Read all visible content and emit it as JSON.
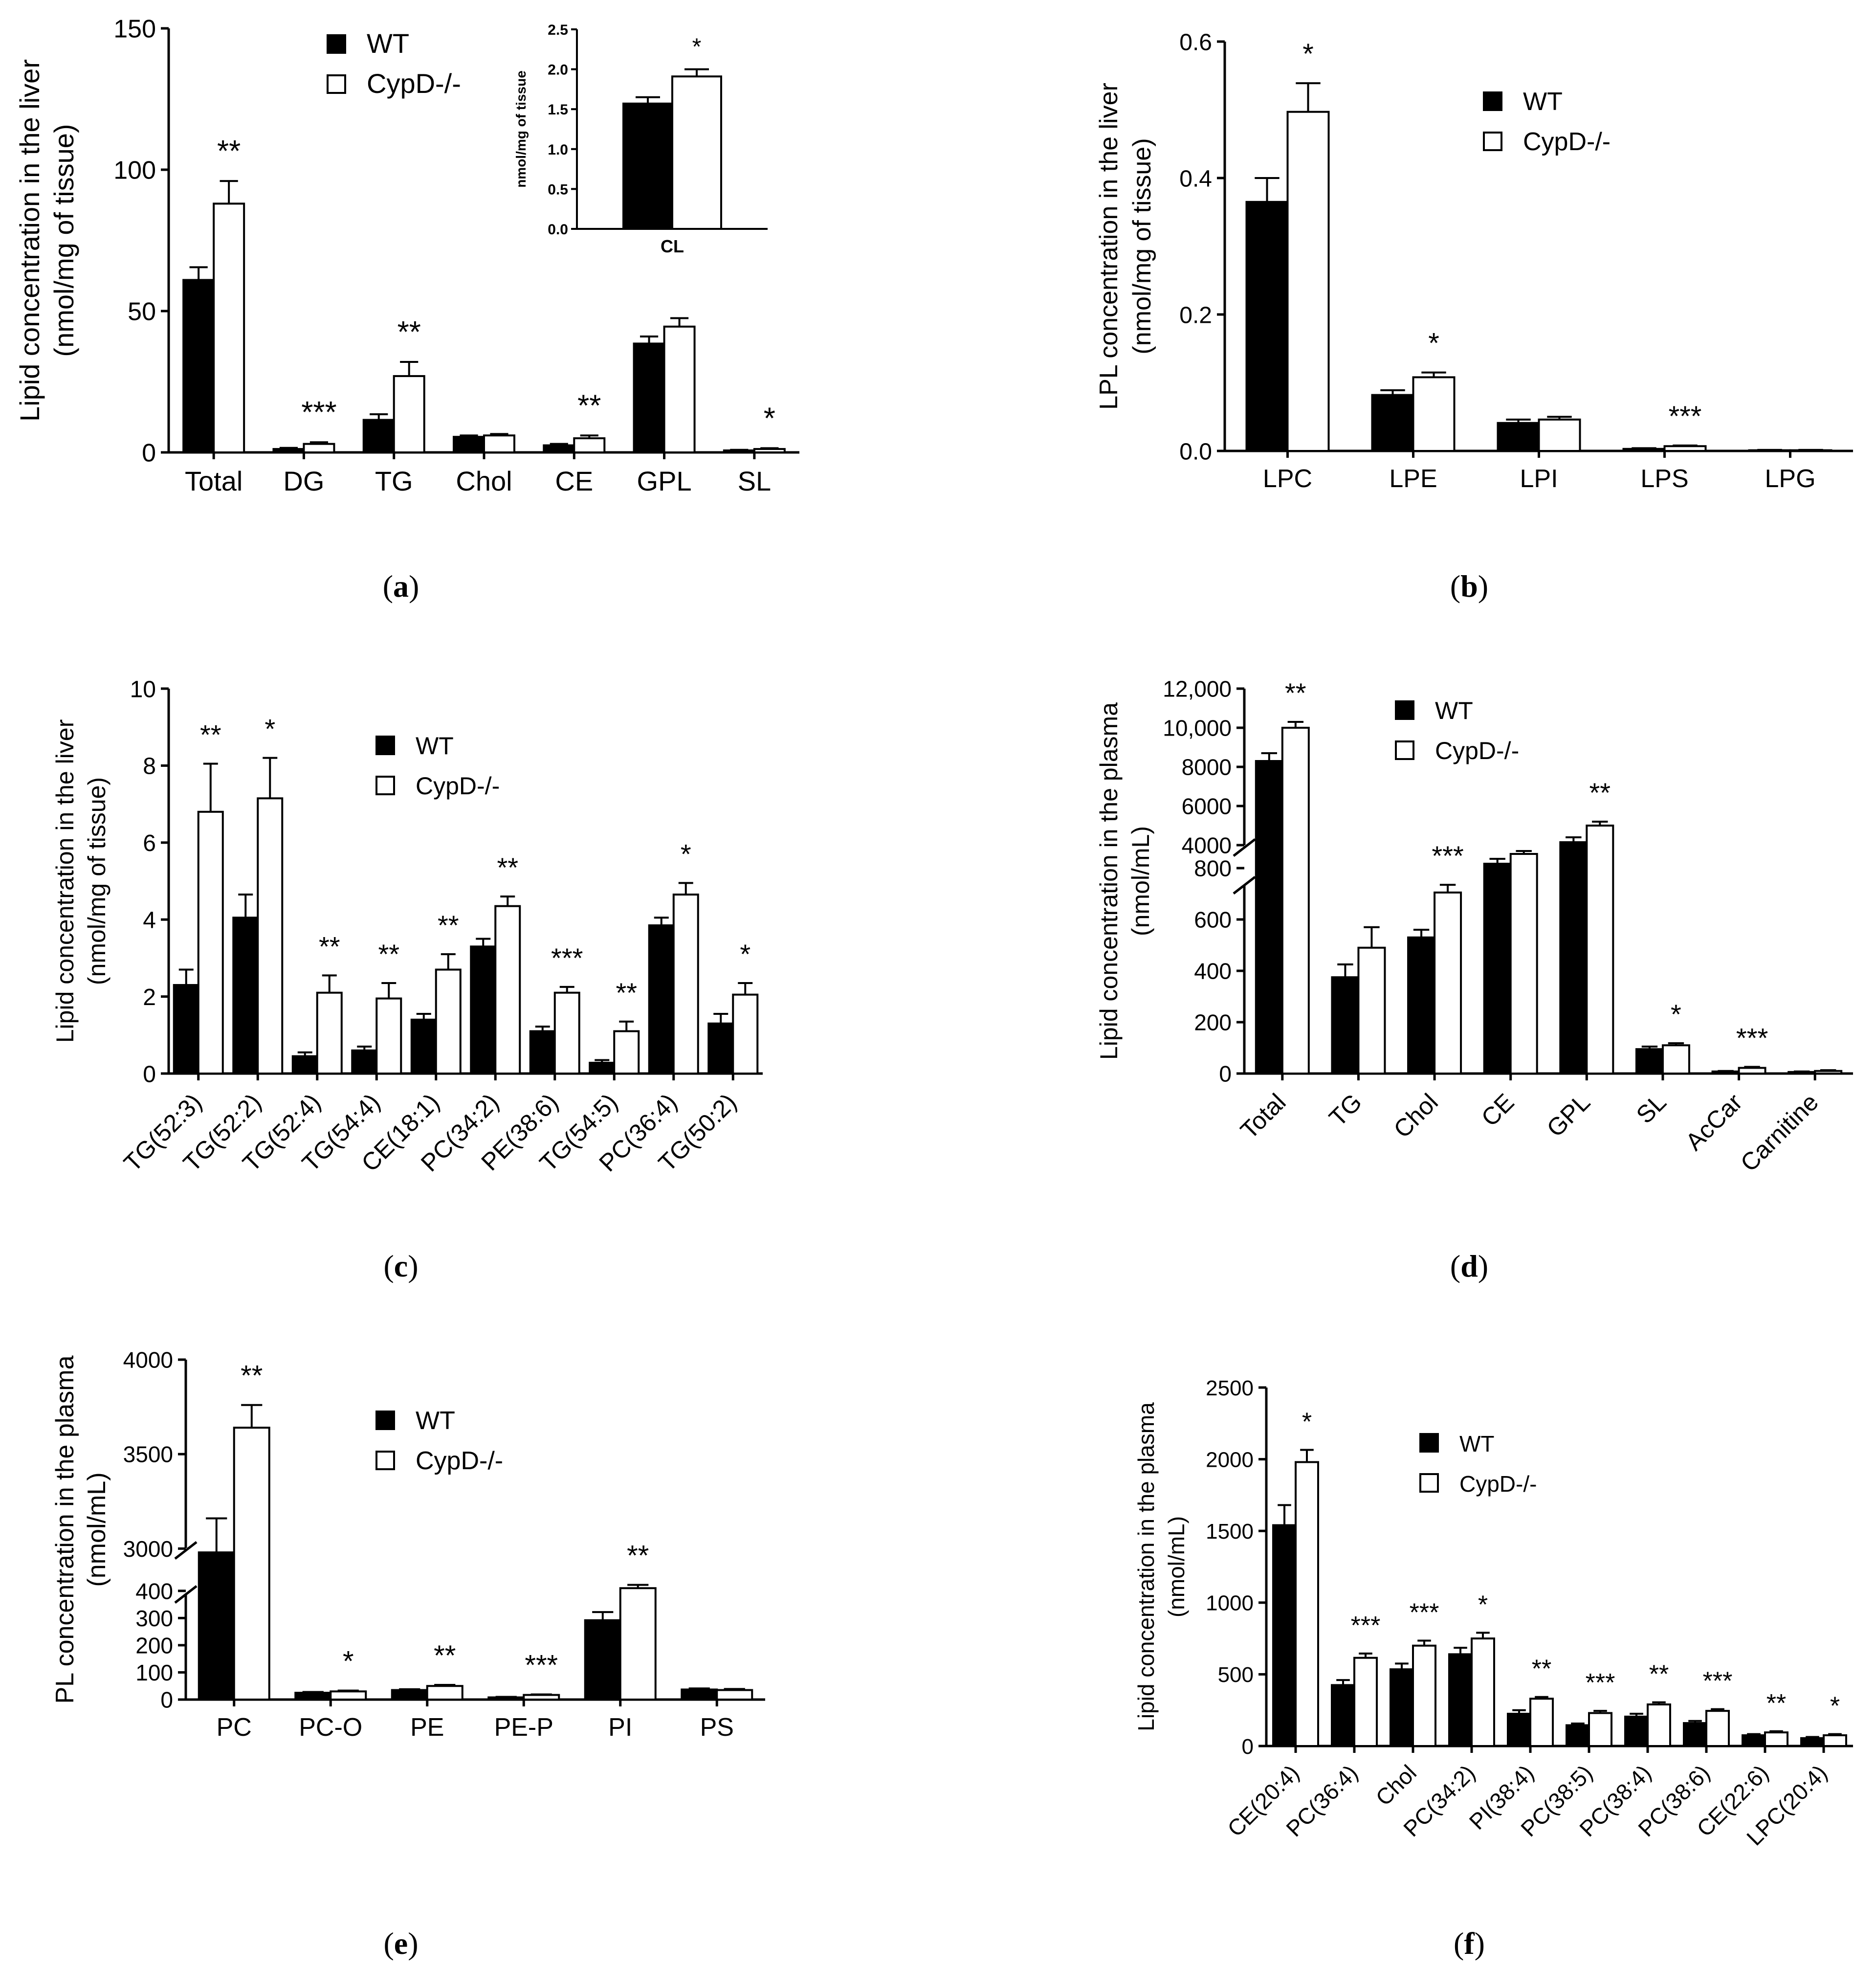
{
  "chart_data": [
    {
      "id": "a",
      "type": "bar",
      "caption": "a",
      "ylabel": [
        "Lipid concentration in the liver",
        "(nmol/mg of tissue)"
      ],
      "ylim": [
        0,
        150
      ],
      "yticks": [
        "0",
        "50",
        "100",
        "150"
      ],
      "categories": [
        "Total",
        "DG",
        "TG",
        "Chol",
        "CE",
        "GPL",
        "SL"
      ],
      "series": [
        {
          "name": "WT",
          "values": [
            61,
            1.2,
            11.5,
            5.5,
            2.5,
            38.5,
            0.7
          ],
          "errors": [
            4.5,
            0.4,
            2,
            0.5,
            0.5,
            2.5,
            0.2
          ]
        },
        {
          "name": "CypD-/-",
          "values": [
            88,
            3,
            27,
            6,
            5,
            44.5,
            1.2
          ],
          "errors": [
            8,
            0.6,
            5,
            0.5,
            1,
            3,
            0.3
          ]
        }
      ],
      "significance": [
        "**",
        "***",
        "**",
        "",
        "**",
        "",
        "*"
      ],
      "legend": "top-center",
      "inset": {
        "ylabel": "nmol/mg of tissue",
        "ylim": [
          0,
          2.5
        ],
        "yticks": [
          "0.0",
          "0.5",
          "1.0",
          "1.5",
          "2.0",
          "2.5"
        ],
        "category": "CL",
        "values": [
          1.57,
          1.91
        ],
        "errors": [
          0.08,
          0.09
        ],
        "significance": "*"
      }
    },
    {
      "id": "b",
      "type": "bar",
      "caption": "b",
      "ylabel": [
        "LPL concentration in the liver",
        "(nmol/mg of tissue)"
      ],
      "ylim": [
        0,
        0.6
      ],
      "yticks": [
        "0.0",
        "0.2",
        "0.4",
        "0.6"
      ],
      "categories": [
        "LPC",
        "LPE",
        "LPI",
        "LPS",
        "LPG"
      ],
      "series": [
        {
          "name": "WT",
          "values": [
            0.365,
            0.082,
            0.041,
            0.003,
            0.001
          ],
          "errors": [
            0.035,
            0.007,
            0.005,
            0.001,
            0.0005
          ]
        },
        {
          "name": "CypD-/-",
          "values": [
            0.497,
            0.108,
            0.046,
            0.007,
            0.001
          ],
          "errors": [
            0.042,
            0.007,
            0.004,
            0.001,
            0.0005
          ]
        }
      ],
      "significance": [
        "*",
        "*",
        "",
        "***",
        ""
      ],
      "legend": "top-right"
    },
    {
      "id": "c",
      "type": "bar",
      "caption": "c",
      "ylabel": [
        "Lipid concentration in the liver",
        "(nmol/mg of tissue)"
      ],
      "ylim": [
        0,
        10
      ],
      "yticks": [
        "0",
        "2",
        "4",
        "6",
        "8",
        "10"
      ],
      "categories": [
        "TG(52:3)",
        "TG(52:2)",
        "TG(52:4)",
        "TG(54:4)",
        "CE(18:1)",
        "PC(34:2)",
        "PE(38:6)",
        "TG(54:5)",
        "PC(36:4)",
        "TG(50:2)"
      ],
      "series": [
        {
          "name": "WT",
          "values": [
            2.3,
            4.05,
            0.45,
            0.6,
            1.4,
            3.3,
            1.1,
            0.28,
            3.85,
            1.3
          ],
          "errors": [
            0.4,
            0.6,
            0.1,
            0.1,
            0.15,
            0.2,
            0.12,
            0.07,
            0.2,
            0.25
          ]
        },
        {
          "name": "CypD-/-",
          "values": [
            6.8,
            7.15,
            2.1,
            1.95,
            2.7,
            4.35,
            2.1,
            1.1,
            4.65,
            2.05
          ],
          "errors": [
            1.25,
            1.05,
            0.45,
            0.4,
            0.4,
            0.25,
            0.15,
            0.25,
            0.3,
            0.3
          ]
        }
      ],
      "significance": [
        "**",
        "*",
        "**",
        "**",
        "**",
        "**",
        "***",
        "**",
        "*",
        "*"
      ],
      "legend": "top-center"
    },
    {
      "id": "d",
      "type": "bar",
      "caption": "d",
      "ylabel": [
        "Lipid concentration in the plasma",
        "(nmol/mL)"
      ],
      "yticks_upper": [
        "4000",
        "6000",
        "8000",
        "10,000",
        "12,000"
      ],
      "yticks_lower": [
        "0",
        "200",
        "400",
        "600",
        "800"
      ],
      "broken_axis": {
        "lower": [
          0,
          800
        ],
        "upper": [
          3000,
          12000
        ]
      },
      "categories": [
        "Total",
        "TG",
        "Chol",
        "CE",
        "GPL",
        "SL",
        "AcCar",
        "Carnitine"
      ],
      "series": [
        {
          "name": "WT",
          "values": [
            8300,
            375,
            530,
            3050,
            4150,
            95,
            8,
            6
          ],
          "errors": [
            400,
            50,
            30,
            250,
            250,
            10,
            2,
            2
          ]
        },
        {
          "name": "CypD-/-",
          "values": [
            10000,
            490,
            705,
            3550,
            5000,
            110,
            22,
            10
          ],
          "errors": [
            300,
            80,
            30,
            150,
            200,
            8,
            4,
            3
          ]
        }
      ],
      "significance": [
        "**",
        "",
        "***",
        "",
        "**",
        "*",
        "***",
        ""
      ],
      "legend": "top-center"
    },
    {
      "id": "e",
      "type": "bar",
      "caption": "e",
      "ylabel": [
        "PL concentration in the plasma",
        "(nmol/mL)"
      ],
      "yticks_upper": [
        "3000",
        "3500",
        "4000"
      ],
      "yticks_lower": [
        "0",
        "100",
        "200",
        "300",
        "400"
      ],
      "broken_axis": {
        "lower": [
          0,
          450
        ],
        "upper": [
          2900,
          4000
        ]
      },
      "categories": [
        "PC",
        "PC-O",
        "PE",
        "PE-P",
        "PI",
        "PS"
      ],
      "series": [
        {
          "name": "WT",
          "values": [
            2980,
            25,
            35,
            8,
            292,
            37
          ],
          "errors": [
            180,
            3,
            3,
            2,
            30,
            4
          ]
        },
        {
          "name": "CypD-/-",
          "values": [
            3640,
            30,
            50,
            17,
            410,
            35
          ],
          "errors": [
            120,
            3,
            4,
            2,
            12,
            4
          ]
        }
      ],
      "significance": [
        "**",
        "*",
        "**",
        "***",
        "**",
        ""
      ],
      "legend": "top-center"
    },
    {
      "id": "f",
      "type": "bar",
      "caption": "f",
      "ylabel": [
        "Lipid concentration in the plasma",
        "(nmol/mL)"
      ],
      "ylim": [
        0,
        2500
      ],
      "yticks": [
        "0",
        "500",
        "1000",
        "1500",
        "2000",
        "2500"
      ],
      "categories": [
        "CE(20:4)",
        "PC(36:4)",
        "Chol",
        "PC(34:2)",
        "PI(38:4)",
        "PC(38:5)",
        "PC(38:4)",
        "PC(38:6)",
        "CE(22:6)",
        "LPC(20:4)"
      ],
      "series": [
        {
          "name": "WT",
          "values": [
            1540,
            425,
            535,
            640,
            225,
            145,
            205,
            160,
            75,
            55
          ],
          "errors": [
            140,
            35,
            40,
            45,
            25,
            12,
            20,
            15,
            8,
            8
          ]
        },
        {
          "name": "CypD-/-",
          "values": [
            1980,
            615,
            700,
            750,
            330,
            230,
            290,
            245,
            95,
            75
          ],
          "errors": [
            85,
            30,
            35,
            40,
            12,
            15,
            15,
            12,
            8,
            8
          ]
        }
      ],
      "significance": [
        "*",
        "***",
        "***",
        "*",
        "**",
        "***",
        "**",
        "***",
        "**",
        "*"
      ],
      "legend": "top-center"
    }
  ]
}
